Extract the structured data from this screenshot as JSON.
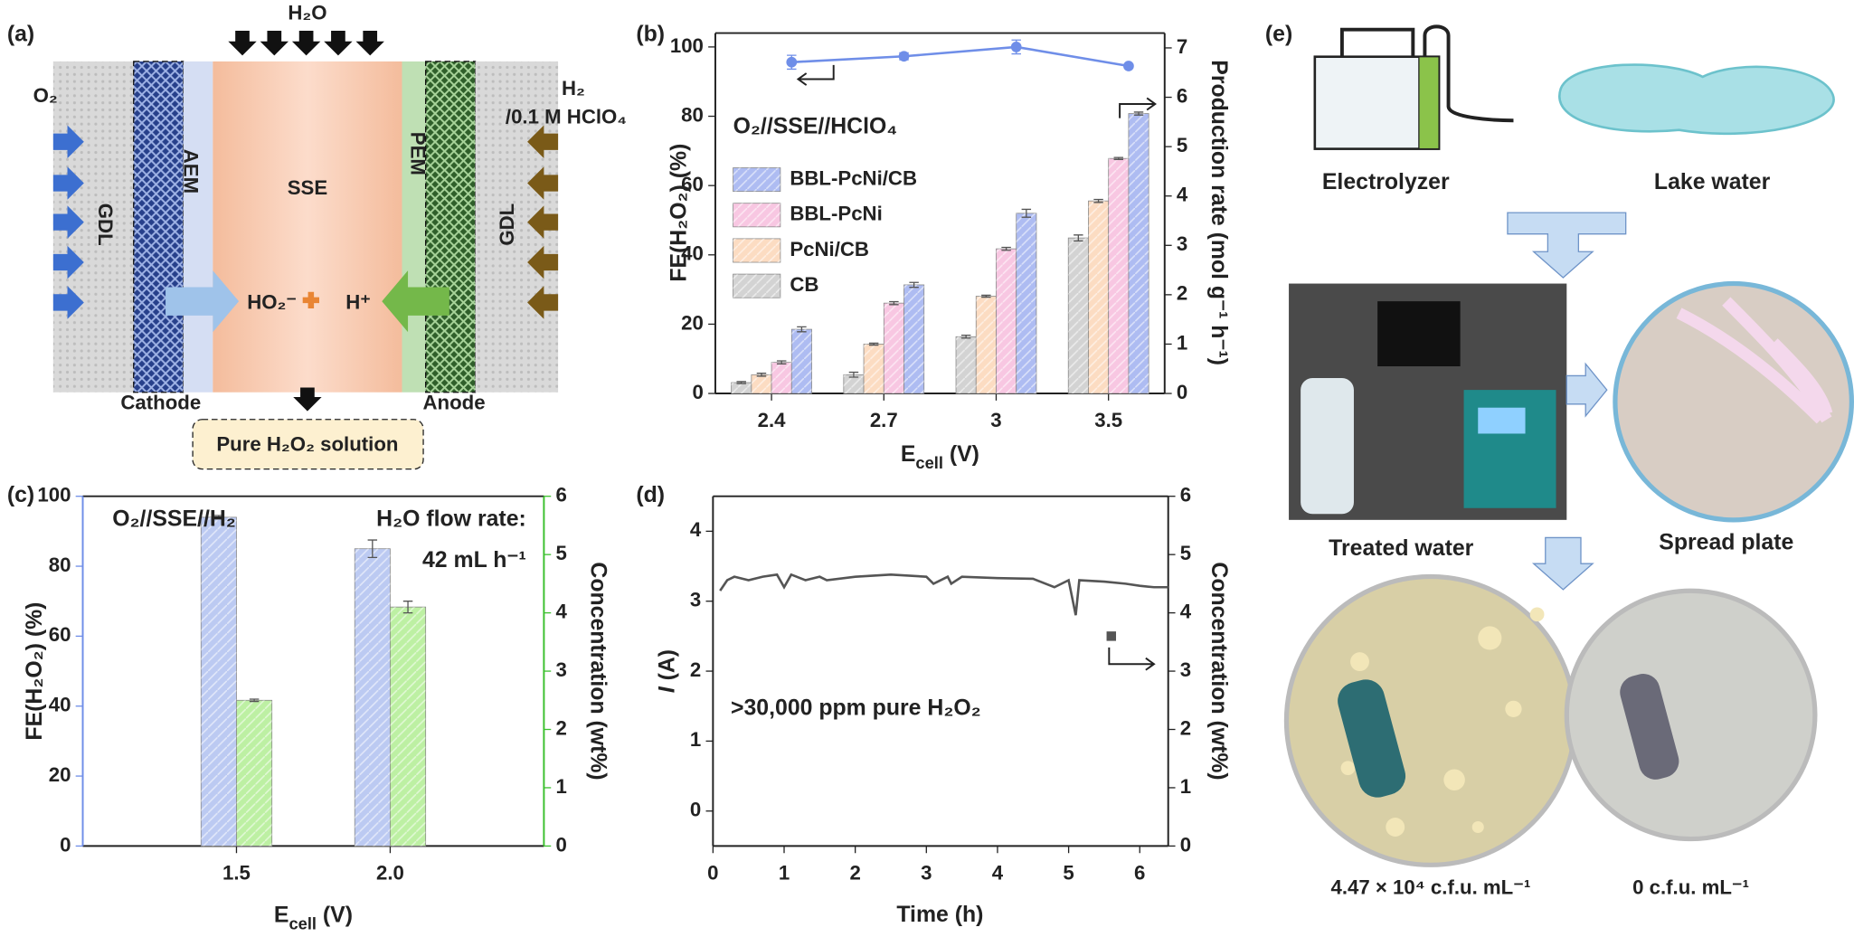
{
  "panel_labels": [
    "(a)",
    "(b)",
    "(c)",
    "(d)",
    "(e)"
  ],
  "diagram": {
    "inlet_top": "H₂O",
    "left_gas": "O₂",
    "right_gas": [
      "H₂",
      "/0.1 M HClO₄"
    ],
    "layers": [
      "GDL",
      "AEM",
      "SSE",
      "PEM",
      "GDL"
    ],
    "ions": [
      "HO₂⁻",
      "H⁺"
    ],
    "electrodes": [
      "Cathode",
      "Anode"
    ],
    "product": "Pure H₂O₂ solution"
  },
  "chart_data": [
    {
      "type": "bar",
      "categories": [
        "2.4",
        "2.7",
        "3",
        "3.5"
      ],
      "xlabel": [
        "E",
        "cell",
        " (V)"
      ],
      "ylabel": "FE(H₂O₂) (%)",
      "y2label": "Production rate (mol g⁻¹ h⁻¹)",
      "annotation": "O₂//SSE//HClO₄",
      "ylim": [
        0,
        104
      ],
      "yticks": [
        0,
        20,
        40,
        60,
        80,
        100
      ],
      "y2lim": [
        0,
        7.3
      ],
      "y2ticks": [
        0,
        1,
        2,
        3,
        4,
        5,
        6,
        7
      ],
      "legend": "upper left",
      "series": [
        {
          "name": "CB",
          "color": "#d3d3d3",
          "axis": "y2",
          "values": [
            0.22,
            0.38,
            1.15,
            3.15
          ],
          "errors": [
            0.02,
            0.05,
            0.03,
            0.06
          ]
        },
        {
          "name": "PcNi/CB",
          "color": "#fcdcc2",
          "axis": "y2",
          "values": [
            0.38,
            1.0,
            1.97,
            3.9
          ],
          "errors": [
            0.03,
            0.02,
            0.02,
            0.03
          ]
        },
        {
          "name": "BBL-PcNi",
          "color": "#f8c7e2",
          "axis": "y2",
          "values": [
            0.63,
            1.83,
            2.93,
            4.76
          ],
          "errors": [
            0.03,
            0.03,
            0.03,
            0.02
          ]
        },
        {
          "name": "BBL-PcNi/CB",
          "color": "#aebcf2",
          "axis": "y2",
          "values": [
            1.3,
            2.2,
            3.65,
            5.67
          ],
          "errors": [
            0.05,
            0.05,
            0.08,
            0.03
          ]
        },
        {
          "type": "line",
          "color": "#6f8ee8",
          "values": [
            95.6,
            97.3,
            100,
            94.5
          ],
          "errors": [
            2,
            1,
            2,
            0.5
          ]
        }
      ]
    },
    {
      "type": "bar",
      "categories": [
        "1.5",
        "2.0"
      ],
      "xlabel": [
        "E",
        "cell",
        " (V)"
      ],
      "ylabel": "FE(H₂O₂) (%)",
      "y2label": "Concentration (wt%)",
      "annotations": [
        "O₂//SSE//H₂",
        "H₂O flow rate:",
        "42 mL h⁻¹"
      ],
      "ylim": [
        0,
        100
      ],
      "yticks": [
        0,
        20,
        40,
        60,
        80,
        100
      ],
      "y2lim": [
        0,
        6
      ],
      "y2ticks": [
        0,
        1,
        2,
        3,
        4,
        5,
        6
      ],
      "ycolor": "#6f8ee8",
      "y2color": "#3cc02e",
      "series": [
        {
          "color": "#bccaf2",
          "values": [
            94,
            85
          ],
          "errors": [
            0.5,
            2.5
          ]
        },
        {
          "color": "#bdf0a3",
          "axis": "y2",
          "values": [
            2.5,
            4.1
          ],
          "errors": [
            0.02,
            0.1
          ]
        }
      ]
    },
    {
      "type": "line",
      "xlabel": "Time (h)",
      "ylabel": [
        "I",
        " (A)"
      ],
      "y2label": "Concentration (wt%)",
      "annotation": ">30,000 ppm pure H₂O₂",
      "x": [
        0.1,
        0.2,
        0.3,
        0.5,
        0.7,
        0.9,
        1.0,
        1.1,
        1.3,
        1.5,
        1.6,
        2.0,
        2.5,
        3.0,
        3.1,
        3.3,
        3.35,
        3.5,
        4.0,
        4.5,
        4.8,
        5.0,
        5.1,
        5.15,
        5.5,
        5.8,
        6.0,
        6.2,
        6.4
      ],
      "xlim": [
        0,
        6.4
      ],
      "xticks": [
        0,
        1,
        2,
        3,
        4,
        5,
        6
      ],
      "ylim": [
        -0.5,
        4.5
      ],
      "yticks": [
        0,
        1,
        2,
        3,
        4
      ],
      "y2lim": [
        0,
        6
      ],
      "y2ticks": [
        0,
        1,
        2,
        3,
        4,
        5,
        6
      ],
      "series": [
        {
          "color": "#555555",
          "values": [
            3.15,
            3.3,
            3.35,
            3.3,
            3.35,
            3.38,
            3.2,
            3.38,
            3.3,
            3.35,
            3.3,
            3.35,
            3.38,
            3.35,
            3.25,
            3.35,
            3.25,
            3.35,
            3.33,
            3.32,
            3.2,
            3.3,
            2.8,
            3.3,
            3.28,
            3.25,
            3.22,
            3.2,
            3.2
          ]
        },
        {
          "type": "scatter",
          "axis": "y2",
          "color": "#555555",
          "x": [
            5.6
          ],
          "values": [
            3.6
          ]
        }
      ]
    }
  ],
  "workflow": {
    "items": [
      "Electrolyzer",
      "Lake water",
      "Treated water",
      "Spread plate"
    ],
    "results": [
      "4.47 × 10⁴ c.f.u. mL⁻¹",
      "0 c.f.u. mL⁻¹"
    ]
  }
}
